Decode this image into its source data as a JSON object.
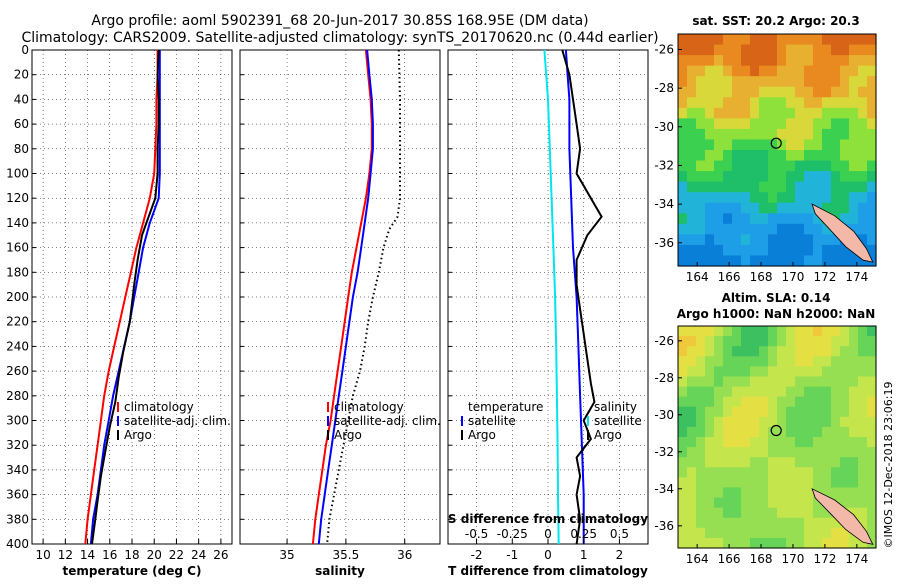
{
  "header": {
    "line1": "Argo profile: aoml 5902391_68 20-Jun-2017 30.85S 168.95E (DM data)",
    "line2": "Climatology: CARS2009. Satellite-adjusted climatology: synTS_20170620.nc (0.44d earlier)"
  },
  "footer": {
    "credit": "©IMOS 12-Dec-2018 23:06:19"
  },
  "colors": {
    "climatology": "#ff0000",
    "satellite": "#0000ff",
    "argo": "#000000",
    "salinity_diff": "#00e5ee"
  },
  "chart_data": [
    {
      "type": "line",
      "name": "temperature",
      "xlabel": "temperature (deg C)",
      "ylabel": "depth",
      "xlim": [
        9,
        27
      ],
      "ylim": [
        400,
        0
      ],
      "xticks": [
        10,
        12,
        14,
        16,
        18,
        20,
        22,
        24,
        26
      ],
      "yticks": [
        0,
        20,
        40,
        60,
        80,
        100,
        120,
        140,
        160,
        180,
        200,
        220,
        240,
        260,
        280,
        300,
        320,
        340,
        360,
        380,
        400
      ],
      "legend": [
        "climatology",
        "satellite-adj. clim.",
        "Argo"
      ],
      "series": [
        {
          "name": "climatology",
          "color": "#ff0000",
          "points": [
            [
              20.3,
              0
            ],
            [
              20.3,
              20
            ],
            [
              20.2,
              40
            ],
            [
              20.2,
              60
            ],
            [
              20.1,
              80
            ],
            [
              20.0,
              100
            ],
            [
              19.6,
              120
            ],
            [
              19.0,
              140
            ],
            [
              18.4,
              160
            ],
            [
              17.9,
              180
            ],
            [
              17.4,
              200
            ],
            [
              16.9,
              220
            ],
            [
              16.4,
              240
            ],
            [
              15.9,
              260
            ],
            [
              15.5,
              280
            ],
            [
              15.2,
              300
            ],
            [
              14.9,
              320
            ],
            [
              14.6,
              340
            ],
            [
              14.3,
              360
            ],
            [
              14.0,
              380
            ],
            [
              13.8,
              400
            ]
          ]
        },
        {
          "name": "satellite",
          "color": "#0000ff",
          "points": [
            [
              20.5,
              0
            ],
            [
              20.5,
              20
            ],
            [
              20.5,
              40
            ],
            [
              20.5,
              60
            ],
            [
              20.5,
              80
            ],
            [
              20.5,
              100
            ],
            [
              20.4,
              120
            ],
            [
              19.6,
              140
            ],
            [
              19.0,
              160
            ],
            [
              18.6,
              180
            ],
            [
              18.2,
              200
            ],
            [
              17.8,
              220
            ],
            [
              17.3,
              240
            ],
            [
              16.8,
              260
            ],
            [
              16.3,
              280
            ],
            [
              15.9,
              300
            ],
            [
              15.5,
              320
            ],
            [
              15.2,
              340
            ],
            [
              14.9,
              360
            ],
            [
              14.5,
              380
            ],
            [
              14.3,
              400
            ]
          ]
        },
        {
          "name": "Argo",
          "color": "#000000",
          "points": [
            [
              20.4,
              0
            ],
            [
              20.3,
              20
            ],
            [
              20.4,
              40
            ],
            [
              20.4,
              60
            ],
            [
              20.3,
              80
            ],
            [
              20.3,
              100
            ],
            [
              20.1,
              120
            ],
            [
              19.3,
              140
            ],
            [
              18.9,
              150
            ],
            [
              18.5,
              170
            ],
            [
              18.2,
              190
            ],
            [
              17.8,
              220
            ],
            [
              17.2,
              245
            ],
            [
              16.8,
              265
            ],
            [
              16.5,
              285
            ],
            [
              16.0,
              305
            ],
            [
              15.6,
              325
            ],
            [
              15.2,
              345
            ],
            [
              14.9,
              365
            ],
            [
              14.7,
              380
            ],
            [
              14.4,
              400
            ]
          ]
        }
      ]
    },
    {
      "type": "line",
      "name": "salinity",
      "xlabel": "salinity",
      "ylabel": "depth",
      "xlim": [
        34.6,
        36.3
      ],
      "ylim": [
        400,
        0
      ],
      "xticks": [
        35,
        35.5,
        36
      ],
      "legend": [
        "climatology",
        "satellite-adj. clim.",
        "Argo"
      ],
      "series": [
        {
          "name": "climatology",
          "color": "#ff0000",
          "points": [
            [
              35.67,
              0
            ],
            [
              35.69,
              20
            ],
            [
              35.71,
              40
            ],
            [
              35.72,
              60
            ],
            [
              35.72,
              80
            ],
            [
              35.7,
              100
            ],
            [
              35.67,
              120
            ],
            [
              35.63,
              140
            ],
            [
              35.59,
              160
            ],
            [
              35.55,
              180
            ],
            [
              35.52,
              200
            ],
            [
              35.49,
              220
            ],
            [
              35.46,
              240
            ],
            [
              35.43,
              260
            ],
            [
              35.4,
              280
            ],
            [
              35.37,
              300
            ],
            [
              35.33,
              320
            ],
            [
              35.3,
              340
            ],
            [
              35.27,
              360
            ],
            [
              35.24,
              380
            ],
            [
              35.22,
              400
            ]
          ]
        },
        {
          "name": "satellite",
          "color": "#0000ff",
          "points": [
            [
              35.68,
              0
            ],
            [
              35.7,
              20
            ],
            [
              35.72,
              40
            ],
            [
              35.73,
              60
            ],
            [
              35.73,
              80
            ],
            [
              35.71,
              100
            ],
            [
              35.69,
              120
            ],
            [
              35.66,
              140
            ],
            [
              35.63,
              160
            ],
            [
              35.6,
              180
            ],
            [
              35.56,
              200
            ],
            [
              35.53,
              220
            ],
            [
              35.5,
              240
            ],
            [
              35.47,
              260
            ],
            [
              35.44,
              280
            ],
            [
              35.41,
              300
            ],
            [
              35.38,
              320
            ],
            [
              35.35,
              340
            ],
            [
              35.32,
              360
            ],
            [
              35.29,
              380
            ],
            [
              35.27,
              400
            ]
          ]
        },
        {
          "name": "Argo",
          "color": "#000000",
          "dash": true,
          "points": [
            [
              35.95,
              0
            ],
            [
              35.96,
              40
            ],
            [
              35.96,
              80
            ],
            [
              35.96,
              120
            ],
            [
              35.94,
              135
            ],
            [
              35.87,
              145
            ],
            [
              35.82,
              160
            ],
            [
              35.78,
              180
            ],
            [
              35.73,
              200
            ],
            [
              35.69,
              220
            ],
            [
              35.66,
              240
            ],
            [
              35.62,
              260
            ],
            [
              35.56,
              280
            ],
            [
              35.52,
              300
            ],
            [
              35.48,
              320
            ],
            [
              35.44,
              340
            ],
            [
              35.4,
              360
            ],
            [
              35.36,
              380
            ],
            [
              35.34,
              400
            ]
          ]
        }
      ]
    },
    {
      "type": "line",
      "name": "difference",
      "xlabel": "T difference from climatology",
      "ylabel": "depth",
      "xlim": [
        -2.8,
        2.8
      ],
      "ylim": [
        400,
        0
      ],
      "xticks": [
        -2,
        -1,
        0,
        1,
        2
      ],
      "inner_xlabel": "S difference from climatology",
      "inner_xticks": [
        -0.5,
        -0.25,
        0,
        0.25,
        0.5
      ],
      "legend_left_title": "temperature",
      "legend_right_title": "salinity",
      "legend_left": [
        "satellite",
        "Argo"
      ],
      "legend_right": [
        "satellite",
        "Argo"
      ],
      "series": [
        {
          "name": "S satellite",
          "color": "#00e5ee",
          "points": [
            [
              -0.1,
              0
            ],
            [
              0.0,
              40
            ],
            [
              0.05,
              80
            ],
            [
              0.1,
              120
            ],
            [
              0.15,
              160
            ],
            [
              0.2,
              200
            ],
            [
              0.23,
              240
            ],
            [
              0.25,
              280
            ],
            [
              0.27,
              320
            ],
            [
              0.28,
              360
            ],
            [
              0.3,
              400
            ]
          ]
        },
        {
          "name": "T satellite",
          "color": "#0000ff",
          "points": [
            [
              0.5,
              0
            ],
            [
              0.55,
              20
            ],
            [
              0.6,
              40
            ],
            [
              0.6,
              80
            ],
            [
              0.65,
              120
            ],
            [
              0.7,
              160
            ],
            [
              0.8,
              200
            ],
            [
              0.85,
              240
            ],
            [
              0.9,
              280
            ],
            [
              0.95,
              320
            ],
            [
              1.0,
              360
            ],
            [
              1.0,
              400
            ]
          ]
        },
        {
          "name": "T Argo",
          "color": "#000000",
          "points": [
            [
              0.4,
              0
            ],
            [
              0.6,
              20
            ],
            [
              0.7,
              40
            ],
            [
              0.8,
              60
            ],
            [
              0.9,
              80
            ],
            [
              0.8,
              100
            ],
            [
              1.2,
              120
            ],
            [
              1.5,
              135
            ],
            [
              1.1,
              150
            ],
            [
              0.8,
              170
            ],
            [
              0.8,
              190
            ],
            [
              0.9,
              210
            ],
            [
              1.0,
              230
            ],
            [
              1.1,
              250
            ],
            [
              1.2,
              270
            ],
            [
              1.3,
              285
            ],
            [
              1.0,
              300
            ],
            [
              1.2,
              315
            ],
            [
              0.8,
              330
            ],
            [
              0.9,
              345
            ],
            [
              0.8,
              360
            ],
            [
              0.9,
              380
            ],
            [
              0.8,
              400
            ]
          ]
        }
      ]
    }
  ],
  "sst_map": {
    "title": "sat. SST: 20.2 Argo: 20.3",
    "xticks": [
      164,
      166,
      168,
      170,
      172,
      174
    ],
    "yticks": [
      -26,
      -28,
      -30,
      -32,
      -34,
      -36
    ],
    "xlim": [
      162.8,
      175.2
    ],
    "ylim": [
      -37.2,
      -25.2
    ],
    "marker": {
      "lon": 168.95,
      "lat": -30.85
    }
  },
  "sla_map": {
    "title1": "Altim. SLA: 0.14",
    "title2": "Argo h1000: NaN h2000: NaN",
    "xticks": [
      164,
      166,
      168,
      170,
      172,
      174
    ],
    "yticks": [
      -26,
      -28,
      -30,
      -32,
      -34,
      -36
    ],
    "xlim": [
      162.8,
      175.2
    ],
    "ylim": [
      -37.2,
      -25.2
    ],
    "marker": {
      "lon": 168.95,
      "lat": -30.85
    }
  }
}
